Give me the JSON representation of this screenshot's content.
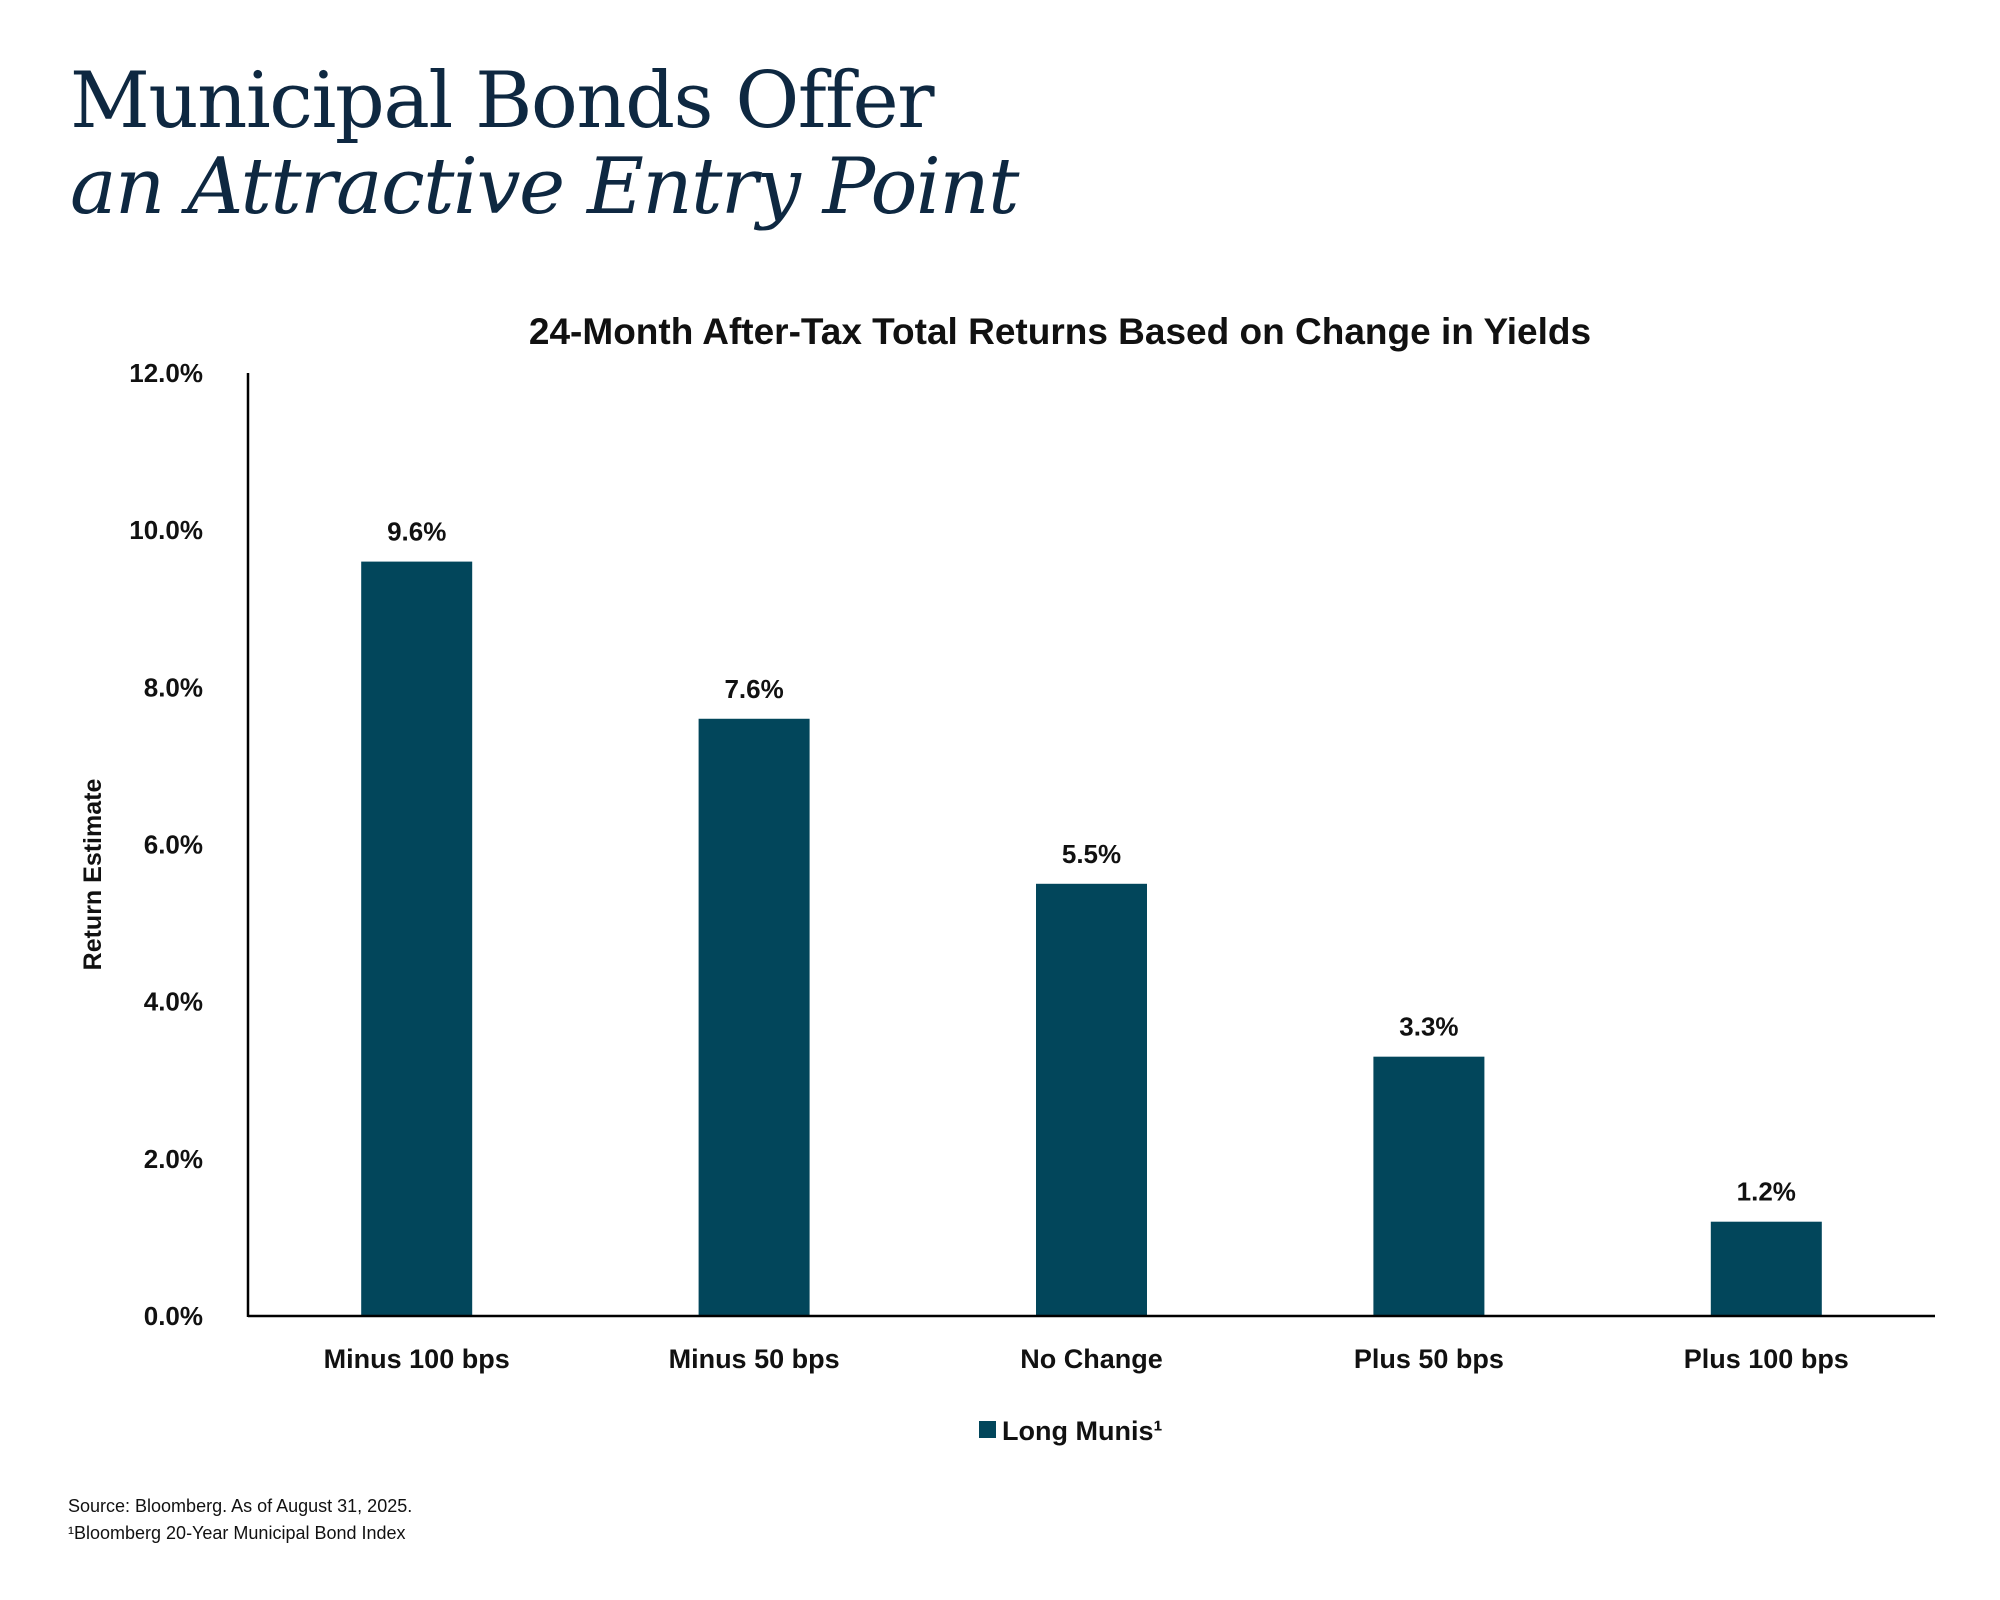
{
  "headline": {
    "line1": "Municipal Bonds Offer",
    "line2": "an Attractive Entry Point"
  },
  "chart_data": {
    "type": "bar",
    "title": "24-Month After-Tax Total Returns Based on Change in Yields",
    "xlabel": "",
    "ylabel": "Return Estimate",
    "ylim": [
      0,
      12
    ],
    "y_ticks": [
      "0.0%",
      "2.0%",
      "4.0%",
      "6.0%",
      "8.0%",
      "10.0%",
      "12.0%"
    ],
    "categories": [
      "Minus 100 bps",
      "Minus 50 bps",
      "No Change",
      "Plus 50 bps",
      "Plus 100 bps"
    ],
    "series": [
      {
        "name": "Long Munis¹",
        "values": [
          9.6,
          7.6,
          5.5,
          3.3,
          1.2
        ],
        "labels": [
          "9.6%",
          "7.6%",
          "5.5%",
          "3.3%",
          "1.2%"
        ],
        "color": "#02465b"
      }
    ],
    "grid": false,
    "legend": "bottom-center"
  },
  "footnotes": {
    "source": "Source: Bloomberg. As of August 31, 2025.",
    "index_note": "¹Bloomberg 20-Year Municipal Bond Index"
  },
  "colors": {
    "headline": "#0e2841",
    "bar": "#02465b",
    "axis": "#000000"
  }
}
